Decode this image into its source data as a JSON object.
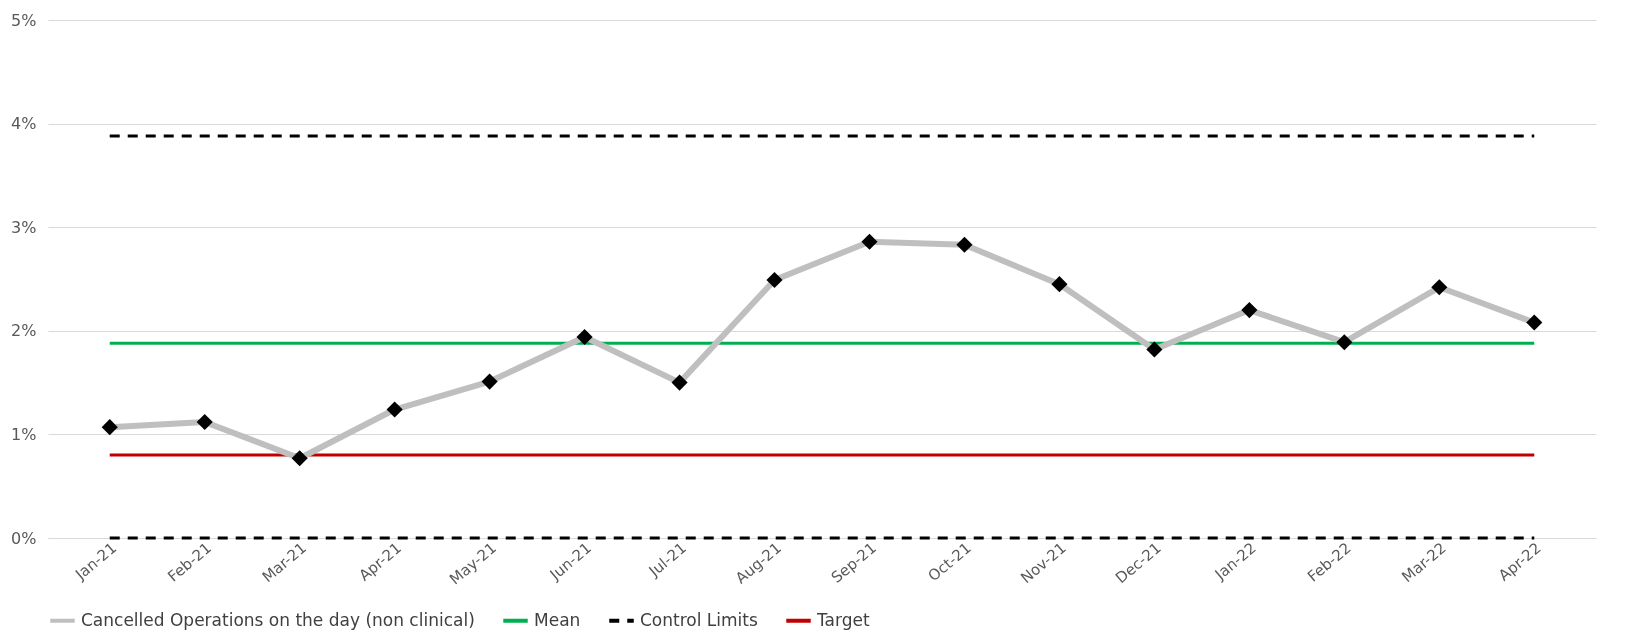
{
  "chart_data": {
    "type": "line",
    "categories": [
      "Jan-21",
      "Feb-21",
      "Mar-21",
      "Apr-21",
      "May-21",
      "Jun-21",
      "Jul-21",
      "Aug-21",
      "Sep-21",
      "Oct-21",
      "Nov-21",
      "Dec-21",
      "Jan-22",
      "Feb-22",
      "Mar-22",
      "Apr-22"
    ],
    "series": [
      {
        "name": "Cancelled Operations on the day (non clinical)",
        "color": "#bfbfbf",
        "values": [
          1.07,
          1.12,
          0.77,
          1.24,
          1.51,
          1.94,
          1.5,
          2.49,
          2.86,
          2.83,
          2.45,
          1.82,
          2.2,
          1.89,
          2.42,
          2.08
        ]
      }
    ],
    "marker": "diamond",
    "ylim": [
      0,
      5
    ],
    "yticks": [
      {
        "value": 0,
        "label": "0%"
      },
      {
        "value": 1,
        "label": "1%"
      },
      {
        "value": 2,
        "label": "2%"
      },
      {
        "value": 3,
        "label": "3%"
      },
      {
        "value": 4,
        "label": "4%"
      },
      {
        "value": 5,
        "label": "5%"
      }
    ],
    "ref_lines": [
      {
        "axis": "y",
        "value": 1.88,
        "label": "Mean",
        "color": "#00b050",
        "line_style": "solid"
      },
      {
        "axis": "y",
        "value": 3.88,
        "label": "Control Limits",
        "color": "#000000",
        "line_style": "dashed"
      },
      {
        "axis": "y",
        "value": 0,
        "color": "#000000",
        "line_style": "dashed"
      },
      {
        "axis": "y",
        "value": 0.8,
        "label": "Target",
        "color": "#c00000",
        "line_style": "solid"
      }
    ],
    "grid": "y",
    "legend": "bottom"
  }
}
